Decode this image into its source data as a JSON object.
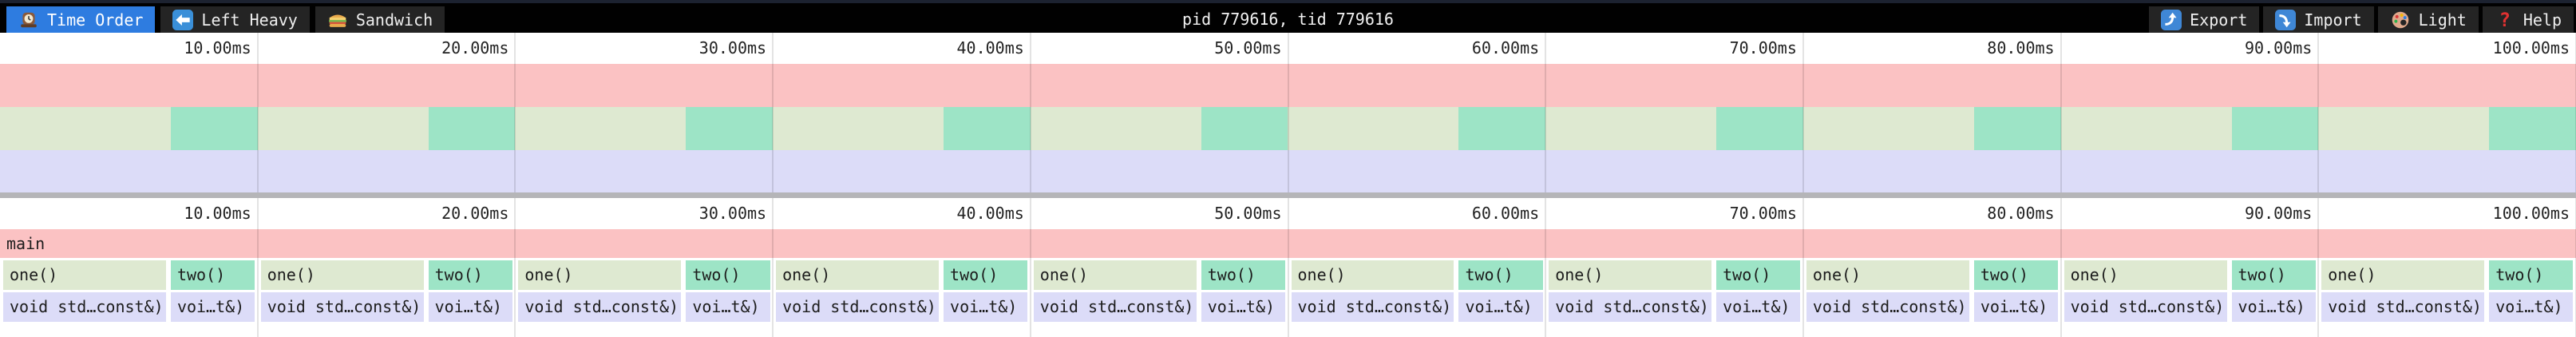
{
  "topbar": {
    "title": "pid 779616, tid 779616",
    "tabs": [
      {
        "label": "Time Order",
        "icon": "clock-icon",
        "active": true
      },
      {
        "label": "Left Heavy",
        "icon": "left-arrow-icon",
        "active": false
      },
      {
        "label": "Sandwich",
        "icon": "sandwich-icon",
        "active": false
      }
    ],
    "actions": [
      {
        "label": "Export",
        "icon": "export-icon"
      },
      {
        "label": "Import",
        "icon": "import-icon"
      },
      {
        "label": "Light",
        "icon": "palette-icon"
      },
      {
        "label": "Help",
        "icon": "help-icon"
      }
    ]
  },
  "timeline": {
    "total_ms": 100,
    "tick_interval_ms": 10,
    "ticks": [
      "10.00ms",
      "20.00ms",
      "30.00ms",
      "40.00ms",
      "50.00ms",
      "60.00ms",
      "70.00ms",
      "80.00ms",
      "90.00ms",
      "100.00ms"
    ]
  },
  "flamegraph": {
    "root_label": "main",
    "cycles": 10,
    "period_ms": 10,
    "cycle_pattern": [
      {
        "label": "one()",
        "color_key": "green",
        "start_ms": 0.124,
        "duration_ms": 6.32,
        "child_label": "void std…const&)"
      },
      {
        "label": "two()",
        "color_key": "teal",
        "start_ms": 6.63,
        "duration_ms": 3.26,
        "child_label": "voi…t&)"
      }
    ]
  },
  "colors": {
    "pink": "#fbc2c3",
    "green": "#dee9d1",
    "teal": "#9de4c6",
    "lavender": "#dcdcf8",
    "active_tab_blue": "#2e7ce0",
    "toolbar_black": "#010101",
    "button_gray": "#242424",
    "divider_gray": "#b5b5b8"
  }
}
